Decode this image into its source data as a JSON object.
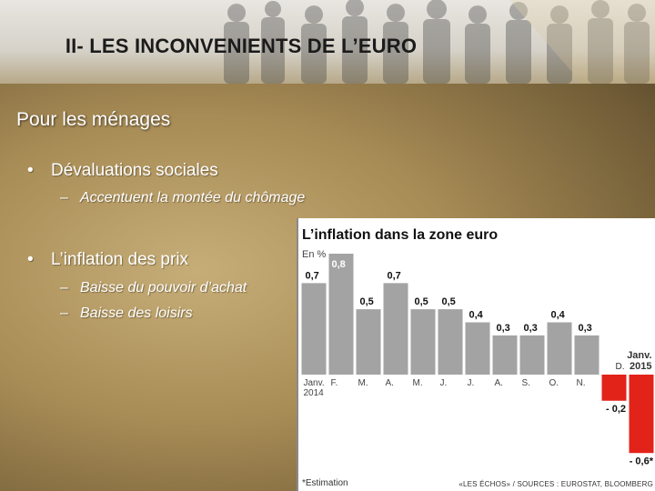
{
  "slide": {
    "title": "II- LES INCONVENIENTS DE L’EURO",
    "section_heading": "Pour les ménages",
    "bullets": [
      {
        "text": "Dévaluations sociales",
        "subs": [
          "Accentuent la montée du chômage"
        ]
      },
      {
        "text": "L’inflation des prix",
        "subs": [
          "Baisse du pouvoir d’achat",
          "Baisse des loisirs"
        ]
      }
    ],
    "bullet_symbol": "•",
    "sub_symbol": "–"
  },
  "chart_data": {
    "type": "bar",
    "title": "L’inflation dans la zone euro",
    "unit": "En %",
    "categories": [
      "Janv.\n2014",
      "F.",
      "M.",
      "A.",
      "M.",
      "J.",
      "J.",
      "A.",
      "S.",
      "O.",
      "N.",
      "D.",
      "Janv.\n2015"
    ],
    "values": [
      0.7,
      0.8,
      0.5,
      0.7,
      0.5,
      0.5,
      0.4,
      0.3,
      0.3,
      0.4,
      0.3,
      -0.2,
      -0.6
    ],
    "value_labels": [
      "0,7",
      "0,8",
      "0,5",
      "0,7",
      "0,5",
      "0,5",
      "0,4",
      "0,3",
      "0,3",
      "0,4",
      "0,3",
      "- 0,2",
      "- 0,6*"
    ],
    "highlight_index": 1,
    "colors": {
      "positive": "#a3a3a3",
      "negative": "#e2231a",
      "highlight_label_bg": "#a3a3a3",
      "panel_bg": "#ffffff"
    },
    "footnote": "*Estimation",
    "source": "«LES ÉCHOS» / SOURCES : EUROSTAT, BLOOMBERG",
    "ylim": [
      -0.6,
      0.8
    ]
  }
}
